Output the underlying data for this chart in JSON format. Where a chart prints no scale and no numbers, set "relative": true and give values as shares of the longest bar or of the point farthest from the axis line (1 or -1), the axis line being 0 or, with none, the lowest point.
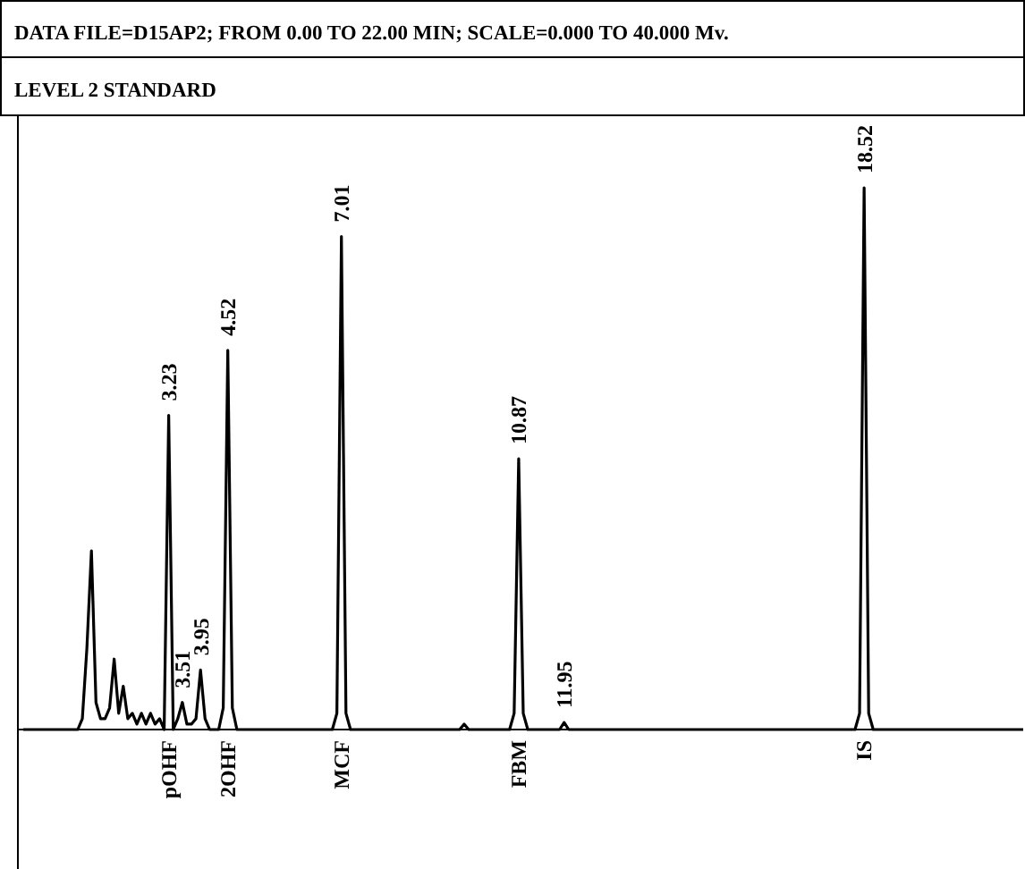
{
  "chart_data": {
    "type": "line",
    "title": "DATA FILE=D15AP2; FROM 0.00 TO 22.00 MIN; SCALE=0.000 TO 40.000 Mv.",
    "subtitle": "LEVEL 2 STANDARD",
    "relative": true,
    "categories": [
      null,
      null,
      null,
      null,
      null,
      null,
      null,
      null,
      null,
      null,
      null,
      null,
      null,
      null,
      null,
      null,
      null,
      null,
      null,
      null,
      null,
      null,
      null,
      null,
      null,
      null,
      null,
      null,
      null,
      null,
      null,
      null,
      "3.23",
      null,
      null,
      "3.51",
      null,
      null,
      null,
      "3.95",
      null,
      null,
      null,
      null,
      null,
      "4.52",
      null,
      null,
      null,
      null,
      null,
      null,
      null,
      null,
      null,
      null,
      null,
      null,
      null,
      null,
      null,
      null,
      null,
      null,
      null,
      null,
      null,
      null,
      null,
      null,
      "7.01",
      null,
      null,
      null,
      null,
      null,
      null,
      null,
      null,
      null,
      null,
      null,
      null,
      null,
      null,
      null,
      null,
      null,
      null,
      null,
      null,
      null,
      null,
      null,
      null,
      null,
      null,
      null,
      null,
      null,
      null,
      null,
      null,
      null,
      null,
      null,
      null,
      null,
      null,
      "10.87",
      null,
      null,
      null,
      null,
      null,
      null,
      null,
      null,
      null,
      "11.95",
      null,
      null,
      null,
      null,
      null,
      null,
      null,
      null,
      null,
      null,
      null,
      null,
      null,
      null,
      null,
      null,
      null,
      null,
      null,
      null,
      null,
      null,
      null,
      null,
      null,
      null,
      null,
      null,
      null,
      null,
      null,
      null,
      null,
      null,
      null,
      null,
      null,
      null,
      null,
      null,
      null,
      null,
      null,
      null,
      null,
      null,
      null,
      null,
      null,
      null,
      null,
      null,
      null,
      null,
      null,
      null,
      null,
      null,
      null,
      null,
      null,
      null,
      null,
      null,
      null,
      "18.52",
      null,
      null,
      null,
      null,
      null,
      null,
      null,
      null,
      null,
      null,
      null,
      null,
      null,
      null,
      null,
      null,
      null,
      null,
      null,
      null,
      null,
      null,
      null,
      null,
      null,
      null,
      null,
      null,
      null,
      null,
      null,
      null,
      null,
      null,
      null
    ],
    "series": [
      {
        "color": "#000000",
        "values": [
          0,
          0,
          0,
          0,
          0,
          0,
          0,
          0,
          0,
          0,
          0,
          0,
          0,
          0.02,
          0.15,
          0.33,
          0.05,
          0.02,
          0.02,
          0.04,
          0.13,
          0.03,
          0.08,
          0.02,
          0.03,
          0.01,
          0.03,
          0.01,
          0.03,
          0.01,
          0.02,
          0,
          0.58,
          0,
          0.02,
          0.05,
          0.01,
          0.01,
          0.02,
          0.11,
          0.02,
          0,
          0,
          0,
          0.04,
          0.7,
          0.04,
          0,
          0,
          0,
          0,
          0,
          0,
          0,
          0,
          0,
          0,
          0,
          0,
          0,
          0,
          0,
          0,
          0,
          0,
          0,
          0,
          0,
          0,
          0.03,
          0.91,
          0.03,
          0,
          0,
          0,
          0,
          0,
          0,
          0,
          0,
          0,
          0,
          0,
          0,
          0,
          0,
          0,
          0,
          0,
          0,
          0,
          0,
          0,
          0,
          0,
          0,
          0,
          0.01,
          0,
          0,
          0,
          0,
          0,
          0,
          0,
          0,
          0,
          0,
          0.03,
          0.5,
          0.03,
          0,
          0,
          0,
          0,
          0,
          0,
          0,
          0,
          0.013,
          0,
          0,
          0,
          0,
          0,
          0,
          0,
          0,
          0,
          0,
          0,
          0,
          0,
          0,
          0,
          0,
          0,
          0,
          0,
          0,
          0,
          0,
          0,
          0,
          0,
          0,
          0,
          0,
          0,
          0,
          0,
          0,
          0,
          0,
          0,
          0,
          0,
          0,
          0,
          0,
          0,
          0,
          0,
          0,
          0,
          0,
          0,
          0,
          0,
          0,
          0,
          0,
          0,
          0,
          0,
          0,
          0,
          0,
          0,
          0,
          0,
          0,
          0,
          0,
          0.03,
          1.0,
          0.03,
          0,
          0,
          0,
          0,
          0,
          0,
          0,
          0,
          0,
          0,
          0,
          0,
          0,
          0,
          0,
          0,
          0,
          0,
          0,
          0,
          0,
          0,
          0,
          0,
          0,
          0,
          0,
          0,
          0,
          0,
          0,
          0,
          0,
          0
        ]
      }
    ],
    "annotations": [
      {
        "text": "pOHF",
        "x": "3.23",
        "y": 0
      },
      {
        "text": "2OHF",
        "x": "4.52",
        "y": 0
      },
      {
        "text": "MCF",
        "x": "7.01",
        "y": 0
      },
      {
        "text": "FBM",
        "x": "10.87",
        "y": 0
      },
      {
        "text": "IS",
        "x": "18.52",
        "y": 0
      }
    ]
  }
}
